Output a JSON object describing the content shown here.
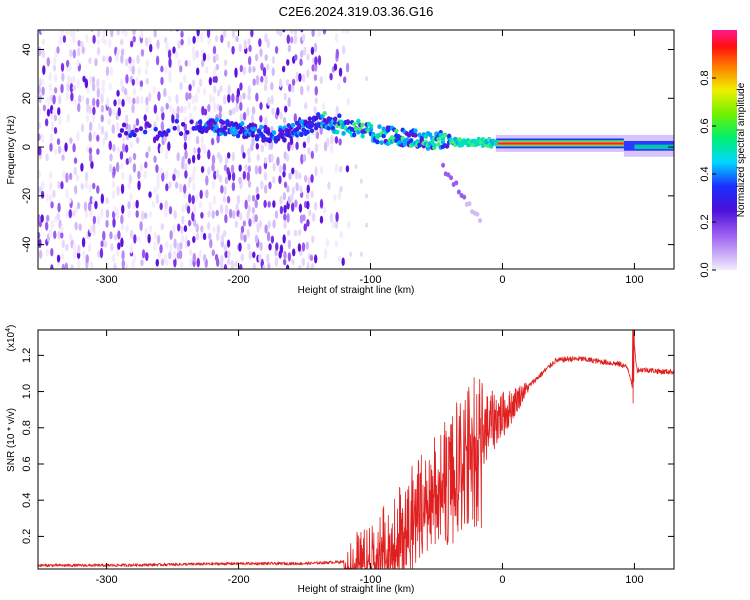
{
  "figure": {
    "title": "C2E6.2024.319.03.36.G16"
  },
  "colors": {
    "snr_line": "#e02020",
    "band": "#6a1fe0",
    "axis": "#000000"
  },
  "chart_data": [
    {
      "type": "heatmap",
      "xlabel": "Height of straight line (km)",
      "ylabel": "Frequency (Hz)",
      "xlim": [
        -352,
        130
      ],
      "ylim": [
        -50,
        48
      ],
      "xticks": [
        -300,
        -200,
        -100,
        0,
        100
      ],
      "yticks": [
        -40,
        -20,
        0,
        20,
        40
      ],
      "colorbar": {
        "label": "Normalized spectral amplitude",
        "range": [
          0,
          1
        ],
        "ticks": [
          "0.0",
          "0.2",
          "0.4",
          "0.6",
          "0.8"
        ]
      },
      "ridge": {
        "x": [
          -290,
          -260,
          -230,
          -210,
          -190,
          -170,
          -150,
          -140,
          -120,
          -100,
          -80,
          -60,
          -40,
          -30,
          -20,
          0,
          50,
          92,
          100,
          130
        ],
        "y": [
          7,
          7,
          9,
          8,
          6,
          5,
          8,
          11,
          9,
          6,
          4,
          3,
          2.5,
          2,
          1.8,
          1.6,
          1.4,
          1.4,
          0.8,
          0
        ]
      }
    },
    {
      "type": "line",
      "xlabel": "Height of straight line (km)",
      "ylabel": "SNR (10 * v/v)",
      "y_multiplier": "(x10",
      "y_multiplier_exp": "4",
      "xlim": [
        -352,
        130
      ],
      "ylim": [
        0.02,
        1.34
      ],
      "xticks": [
        -300,
        -200,
        -100,
        0,
        100
      ],
      "yticks": [
        0.2,
        0.4,
        0.6,
        0.8,
        1.0,
        1.2
      ],
      "ytick_labels": [
        "0.2",
        "0.4",
        "0.6",
        "0.8",
        "1.0",
        "1.2"
      ],
      "series": [
        {
          "x": [
            -352,
            -300,
            -250,
            -200,
            -150,
            -120,
            -105,
            -95,
            -85,
            -75,
            -65,
            -55,
            -45,
            -35,
            -25,
            -15,
            -5,
            0,
            5,
            10,
            20,
            30,
            40,
            50,
            60,
            70,
            80,
            90,
            95,
            98,
            100,
            102,
            110,
            120,
            130
          ],
          "y": [
            0.04,
            0.04,
            0.045,
            0.05,
            0.05,
            0.06,
            0.1,
            0.15,
            0.22,
            0.3,
            0.4,
            0.45,
            0.55,
            0.65,
            0.75,
            0.78,
            0.85,
            0.87,
            0.9,
            0.95,
            1.03,
            1.1,
            1.17,
            1.18,
            1.18,
            1.17,
            1.16,
            1.15,
            1.13,
            1.05,
            1.25,
            1.12,
            1.12,
            1.11,
            1.11
          ]
        }
      ]
    }
  ]
}
